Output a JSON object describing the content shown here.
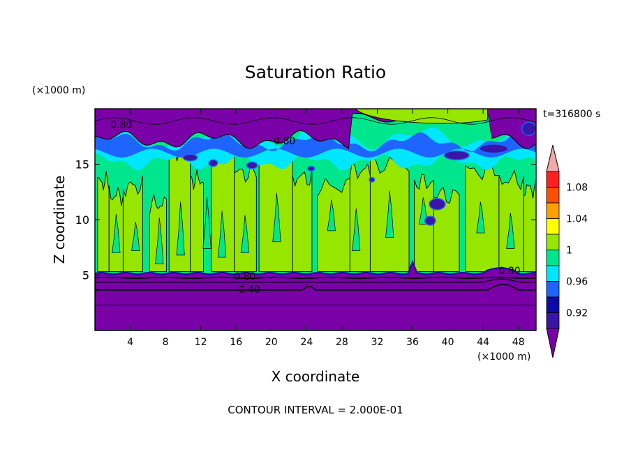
{
  "chart_data": {
    "type": "heatmap",
    "title": "Saturation Ratio",
    "xlabel": "X coordinate",
    "ylabel": "Z coordinate",
    "x_unit": "(×1000 m)",
    "y_unit": "(×1000 m)",
    "time_label": "t=316800 s",
    "footer": "CONTOUR INTERVAL = 2.000E-01",
    "xlim": [
      0,
      50
    ],
    "ylim": [
      0,
      20
    ],
    "x_ticks": [
      4,
      8,
      12,
      16,
      20,
      24,
      28,
      32,
      36,
      40,
      44,
      48
    ],
    "y_ticks": [
      5,
      10,
      15
    ],
    "colorbar": {
      "levels": [
        0.92,
        0.96,
        1,
        1.04,
        1.08
      ],
      "level_labels": [
        "0.92",
        "0.96",
        "1",
        "1.04",
        "1.08"
      ],
      "colors": [
        "#7a00a8",
        "#3b14a8",
        "#0a0aa8",
        "#1e64ff",
        "#00e6ff",
        "#00e68c",
        "#96e600",
        "#ffff00",
        "#ffa000",
        "#ff5000",
        "#ff2020",
        "#f4a8a8"
      ]
    },
    "contour_labels": [
      {
        "text": "0.80",
        "x": 3.0,
        "y": 18.6
      },
      {
        "text": "0.80",
        "x": 21.5,
        "y": 17.1
      },
      {
        "text": "0.80",
        "x": 17.0,
        "y": 4.9
      },
      {
        "text": "0.40",
        "x": 17.5,
        "y": 3.7
      },
      {
        "text": "0.80",
        "x": 47.0,
        "y": 5.4
      }
    ]
  }
}
